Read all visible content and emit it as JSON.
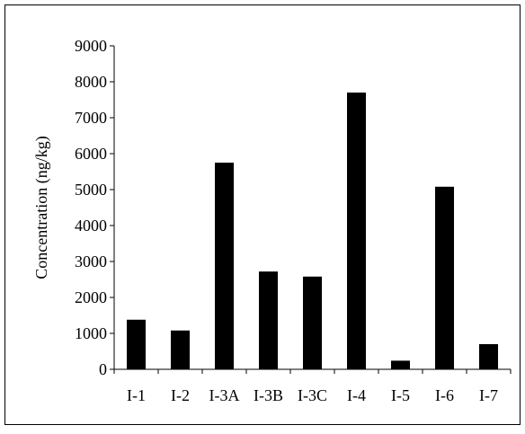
{
  "chart_data": {
    "type": "bar",
    "title": "",
    "xlabel": "",
    "ylabel": "Concentration (ng/kg)",
    "categories": [
      "I-1",
      "I-2",
      "I-3A",
      "I-3B",
      "I-3C",
      "I-4",
      "I-5",
      "I-6",
      "I-7"
    ],
    "series": [
      {
        "values": [
          1380,
          1080,
          5750,
          2720,
          2580,
          7700,
          240,
          5080,
          700
        ]
      }
    ],
    "ylim": [
      0,
      9000
    ],
    "yticks": [
      "0",
      "1000",
      "2000",
      "3000",
      "4000",
      "5000",
      "6000",
      "7000",
      "8000",
      "9000"
    ],
    "grid": false,
    "legend": "none",
    "colors": {
      "bar": "#000000",
      "axis": "#000000",
      "frame": "#000000"
    }
  }
}
